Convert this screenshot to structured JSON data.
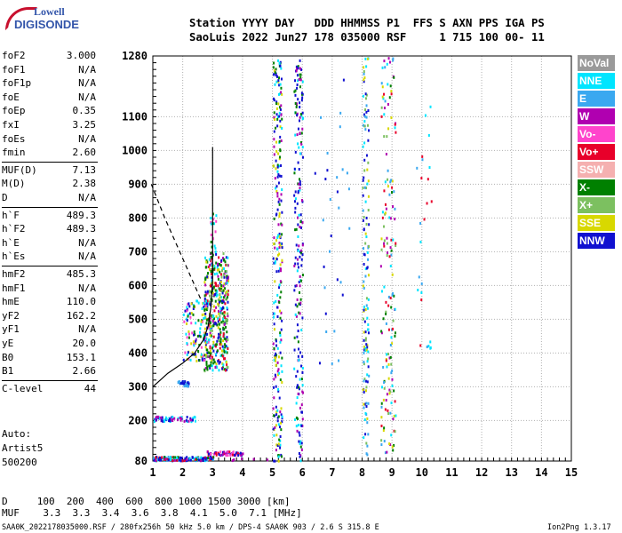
{
  "logo": {
    "line1": "Lowell",
    "line2": "DIGISONDE"
  },
  "header": {
    "row1": "Station YYYY DAY   DDD HHMMSS P1  FFS S AXN PPS IGA PS",
    "row2": "SaoLuis 2022 Jun27 178 035000 RSF     1 715 100 00- 11"
  },
  "params": [
    {
      "name": "foF2",
      "value": "3.000"
    },
    {
      "name": "foF1",
      "value": "N/A"
    },
    {
      "name": "foF1p",
      "value": "N/A"
    },
    {
      "name": "foE",
      "value": "N/A"
    },
    {
      "name": "foEp",
      "value": "0.35"
    },
    {
      "name": "fxI",
      "value": "3.25"
    },
    {
      "name": "foEs",
      "value": "N/A"
    },
    {
      "name": "fmin",
      "value": "2.60"
    },
    {
      "name": "MUF(D)",
      "value": "7.13"
    },
    {
      "name": "M(D)",
      "value": "2.38"
    },
    {
      "name": "D",
      "value": "N/A"
    },
    {
      "name": "h`F",
      "value": "489.3"
    },
    {
      "name": "h`F2",
      "value": "489.3"
    },
    {
      "name": "h`E",
      "value": "N/A"
    },
    {
      "name": "h`Es",
      "value": "N/A"
    },
    {
      "name": "hmF2",
      "value": "485.3"
    },
    {
      "name": "hmF1",
      "value": "N/A"
    },
    {
      "name": "hmE",
      "value": "110.0"
    },
    {
      "name": "yF2",
      "value": "162.2"
    },
    {
      "name": "yF1",
      "value": "N/A"
    },
    {
      "name": "yE",
      "value": "20.0"
    },
    {
      "name": "B0",
      "value": "153.1"
    },
    {
      "name": "B1",
      "value": "2.66"
    },
    {
      "name": "C-level",
      "value": "44"
    }
  ],
  "auto": {
    "line1": "Auto:",
    "line2": "Artist5",
    "line3": "500200"
  },
  "legend": [
    {
      "label": "NoVal",
      "color": "#9a9a9a"
    },
    {
      "label": "NNE",
      "color": "#00e5ff"
    },
    {
      "label": "E",
      "color": "#3aa8f0"
    },
    {
      "label": "W",
      "color": "#b000b0"
    },
    {
      "label": "Vo-",
      "color": "#ff44cc"
    },
    {
      "label": "Vo+",
      "color": "#e8002a"
    },
    {
      "label": "SSW",
      "color": "#f5b0b0"
    },
    {
      "label": "X-",
      "color": "#008000"
    },
    {
      "label": "X+",
      "color": "#7cc060"
    },
    {
      "label": "SSE",
      "color": "#d8d800"
    },
    {
      "label": "NNW",
      "color": "#1010d0"
    }
  ],
  "footer": {
    "row1": "D     100  200  400  600  800 1000 1500 3000 [km]",
    "row2": "MUF    3.3  3.3  3.4  3.6  3.8  4.1  5.0  7.1 [MHz]",
    "info": "SAA0K_2022178035000.RSF / 280fx256h 50 kHz 5.0 km / DPS-4 SAA0K 903 / 2.6 S 315.8 E",
    "version": "Ion2Png 1.3.17"
  },
  "chart_data": {
    "type": "scatter",
    "xlabel": "",
    "ylabel": "",
    "xlim": [
      1,
      15
    ],
    "ylim": [
      80,
      1280
    ],
    "x_ticks": [
      1,
      2,
      3,
      4,
      5,
      6,
      7,
      8,
      9,
      10,
      11,
      12,
      13,
      14,
      15
    ],
    "y_ticks": [
      80,
      200,
      300,
      400,
      500,
      600,
      700,
      800,
      900,
      1000,
      1100,
      1280
    ],
    "ionogram_traces": [
      {
        "name": "F2 trace",
        "x_range": [
          2.7,
          3.5
        ],
        "h_range": [
          350,
          700
        ],
        "dominant_color": "X-"
      },
      {
        "name": "2nd hop",
        "x_range": [
          4.9,
          6.1
        ],
        "h_range": [
          80,
          1280
        ],
        "dominant_color": "NNW"
      },
      {
        "name": "3rd hop",
        "x_range": [
          7.9,
          9.2
        ],
        "h_range": [
          80,
          1280
        ],
        "dominant_color": "NNE"
      },
      {
        "name": "Es-like",
        "x_range": [
          1.0,
          3.2
        ],
        "h_range": [
          80,
          320
        ],
        "dominant_color": "NNW"
      }
    ],
    "profile_solid": [
      [
        1.0,
        300
      ],
      [
        1.5,
        340
      ],
      [
        2.0,
        370
      ],
      [
        2.4,
        400
      ],
      [
        2.7,
        440
      ],
      [
        2.85,
        480
      ],
      [
        2.95,
        540
      ],
      [
        3.0,
        620
      ],
      [
        3.0,
        800
      ],
      [
        3.0,
        1010
      ]
    ],
    "profile_dashed": [
      [
        0.95,
        900
      ],
      [
        1.4,
        800
      ],
      [
        1.9,
        700
      ],
      [
        2.3,
        620
      ],
      [
        2.6,
        560
      ]
    ]
  }
}
